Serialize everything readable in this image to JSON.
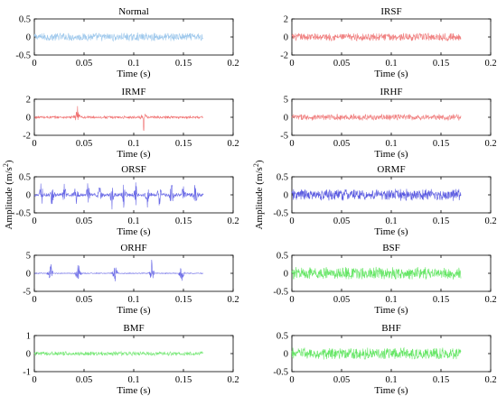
{
  "figure": {
    "ylabel_left": "Amplitude (m/s",
    "ylabel_right": "Amplitude (m/s",
    "ylabel_unit_close": ")",
    "ylabel_superscript": "2"
  },
  "chart_data": [
    {
      "type": "line",
      "title": "Normal",
      "xlabel": "Time (s)",
      "ylabel": "",
      "xlim": [
        0,
        0.2
      ],
      "ylim": [
        -0.5,
        0.5
      ],
      "xticks": [
        "0",
        "0.05",
        "0.1",
        "0.15",
        "0.2"
      ],
      "yticks": [
        "0.5",
        "0",
        "-0.5"
      ],
      "series": [
        {
          "color": "#9ec8ec",
          "x_range": [
            0,
            0.17
          ],
          "amplitude": 0.12,
          "impulses": []
        }
      ]
    },
    {
      "type": "line",
      "title": "IRSF",
      "xlabel": "Time (s)",
      "ylabel": "",
      "xlim": [
        0,
        0.2
      ],
      "ylim": [
        -2,
        2
      ],
      "xticks": [
        "0",
        "0.05",
        "0.1",
        "0.15",
        "0.2"
      ],
      "yticks": [
        "2",
        "0",
        "-2"
      ],
      "series": [
        {
          "color": "#f08080",
          "x_range": [
            0,
            0.17
          ],
          "amplitude": 0.45,
          "impulses": []
        }
      ]
    },
    {
      "type": "line",
      "title": "IRMF",
      "xlabel": "Time (s)",
      "ylabel": "",
      "xlim": [
        0,
        0.2
      ],
      "ylim": [
        -2,
        2
      ],
      "xticks": [
        "0",
        "0.05",
        "0.1",
        "0.15",
        "0.2"
      ],
      "yticks": [
        "2",
        "0",
        "-2"
      ],
      "series": [
        {
          "color": "#f07070",
          "x_range": [
            0,
            0.17
          ],
          "amplitude": 0.15,
          "impulses": [
            0.043,
            0.11
          ]
        }
      ]
    },
    {
      "type": "line",
      "title": "IRHF",
      "xlabel": "Time (s)",
      "ylabel": "",
      "xlim": [
        0,
        0.2
      ],
      "ylim": [
        -5,
        5
      ],
      "xticks": [
        "0",
        "0.05",
        "0.1",
        "0.15",
        "0.2"
      ],
      "yticks": [
        "5",
        "0",
        "-5"
      ],
      "series": [
        {
          "color": "#f08080",
          "x_range": [
            0,
            0.17
          ],
          "amplitude": 0.9,
          "impulses": []
        }
      ]
    },
    {
      "type": "line",
      "title": "ORSF",
      "xlabel": "Time (s)",
      "ylabel": "",
      "xlim": [
        0,
        0.2
      ],
      "ylim": [
        -0.5,
        0.5
      ],
      "xticks": [
        "0",
        "0.05",
        "0.1",
        "0.15",
        "0.2"
      ],
      "yticks": [
        "0.5",
        "0",
        "-0.5"
      ],
      "series": [
        {
          "color": "#6a6ae6",
          "x_range": [
            0,
            0.17
          ],
          "amplitude": 0.05,
          "impulses": [
            0.007,
            0.018,
            0.03,
            0.042,
            0.054,
            0.066,
            0.078,
            0.09,
            0.102,
            0.114,
            0.126,
            0.138,
            0.15,
            0.162
          ]
        }
      ]
    },
    {
      "type": "line",
      "title": "ORMF",
      "xlabel": "Time (s)",
      "ylabel": "",
      "xlim": [
        0,
        0.2
      ],
      "ylim": [
        -0.5,
        0.5
      ],
      "xticks": [
        "0",
        "0.05",
        "0.1",
        "0.15",
        "0.2"
      ],
      "yticks": [
        "0.5",
        "0",
        "-0.5"
      ],
      "series": [
        {
          "color": "#5a5ae0",
          "x_range": [
            0,
            0.17
          ],
          "amplitude": 0.17,
          "impulses": []
        }
      ]
    },
    {
      "type": "line",
      "title": "ORHF",
      "xlabel": "Time (s)",
      "ylabel": "",
      "xlim": [
        0,
        0.2
      ],
      "ylim": [
        -5,
        5
      ],
      "xticks": [
        "0",
        "0.05",
        "0.1",
        "0.15",
        "0.2"
      ],
      "yticks": [
        "5",
        "0",
        "-5"
      ],
      "series": [
        {
          "color": "#6a6ae6",
          "x_range": [
            0,
            0.17
          ],
          "amplitude": 0.12,
          "impulses": [
            0.016,
            0.044,
            0.081,
            0.118,
            0.148
          ]
        }
      ]
    },
    {
      "type": "line",
      "title": "BSF",
      "xlabel": "Time (s)",
      "ylabel": "",
      "xlim": [
        0,
        0.2
      ],
      "ylim": [
        -0.5,
        0.5
      ],
      "xticks": [
        "0",
        "0.05",
        "0.1",
        "0.15",
        "0.2"
      ],
      "yticks": [
        "0.5",
        "0",
        "-0.5"
      ],
      "series": [
        {
          "color": "#66e666",
          "x_range": [
            0,
            0.17
          ],
          "amplitude": 0.18,
          "impulses": []
        }
      ]
    },
    {
      "type": "line",
      "title": "BMF",
      "xlabel": "Time (s)",
      "ylabel": "",
      "xlim": [
        0,
        0.2
      ],
      "ylim": [
        -1,
        1
      ],
      "xticks": [
        "0",
        "0.05",
        "0.1",
        "0.15",
        "0.2"
      ],
      "yticks": [
        "1",
        "0",
        "-1"
      ],
      "series": [
        {
          "color": "#78e878",
          "x_range": [
            0,
            0.17
          ],
          "amplitude": 0.12,
          "impulses": []
        }
      ]
    },
    {
      "type": "line",
      "title": "BHF",
      "xlabel": "Time (s)",
      "ylabel": "",
      "xlim": [
        0,
        0.2
      ],
      "ylim": [
        -0.5,
        0.5
      ],
      "xticks": [
        "0",
        "0.05",
        "0.1",
        "0.15",
        "0.2"
      ],
      "yticks": [
        "0.5",
        "0",
        "-0.5"
      ],
      "series": [
        {
          "color": "#66e666",
          "x_range": [
            0,
            0.17
          ],
          "amplitude": 0.17,
          "impulses": []
        }
      ]
    }
  ]
}
